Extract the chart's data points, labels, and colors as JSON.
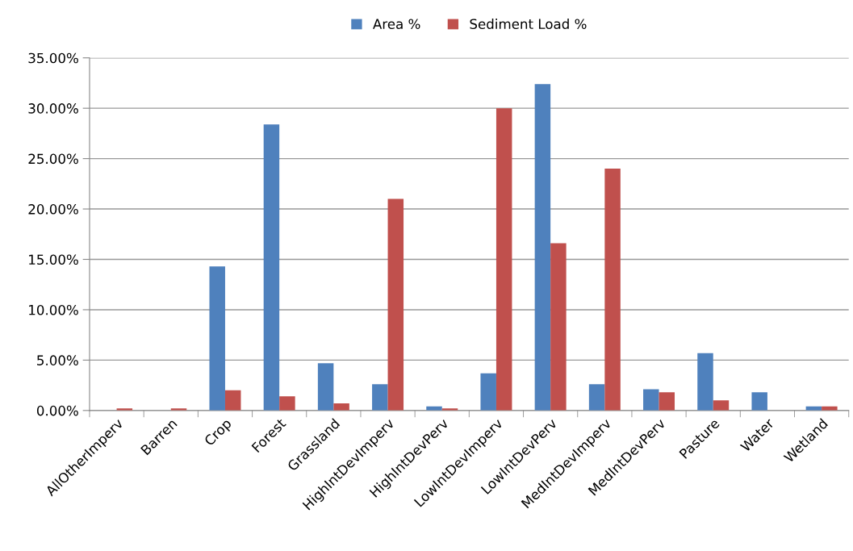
{
  "chart_data": {
    "type": "bar",
    "categories": [
      "AllOtherImperv",
      "Barren",
      "Crop",
      "Forest",
      "Grassland",
      "HighIntDevImperv",
      "HighIntDevPerv",
      "LowIntDevImperv",
      "LowIntDevPerv",
      "MedIntDevImperv",
      "MedIntDevPerv",
      "Pasture",
      "Water",
      "Wetland"
    ],
    "series": [
      {
        "name": "Area %",
        "color": "#4f81bd",
        "values": [
          0,
          0,
          14.3,
          28.4,
          4.7,
          2.6,
          0.4,
          3.7,
          32.4,
          2.6,
          2.1,
          5.7,
          1.8,
          0.4
        ]
      },
      {
        "name": "Sediment Load %",
        "color": "#c0504d",
        "values": [
          0.2,
          0.2,
          2.0,
          1.4,
          0.7,
          21.0,
          0.2,
          30.0,
          16.6,
          24.0,
          1.8,
          1.0,
          0,
          0.4
        ]
      }
    ],
    "ylim": [
      0,
      35
    ],
    "yticks": [
      {
        "value": 0,
        "label": "0.00%"
      },
      {
        "value": 5,
        "label": "5.00%"
      },
      {
        "value": 10,
        "label": "10.00%"
      },
      {
        "value": 15,
        "label": "15.00%"
      },
      {
        "value": 20,
        "label": "20.00%"
      },
      {
        "value": 25,
        "label": "25.00%"
      },
      {
        "value": 30,
        "label": "30.00%"
      },
      {
        "value": 35,
        "label": "35.00%"
      }
    ],
    "grid": "y",
    "legend": "top"
  }
}
